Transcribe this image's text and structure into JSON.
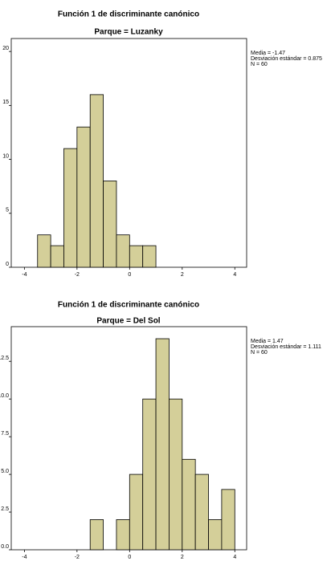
{
  "chart_data": [
    {
      "type": "histogram",
      "title": "Función 1 de discriminante canónico",
      "subtitle": "Parque = Luzanky",
      "bins": [
        -3.5,
        -3,
        -2.5,
        -2,
        -1.5,
        -1,
        -0.5,
        0,
        0.5,
        1
      ],
      "values": [
        3,
        2,
        11,
        13,
        16,
        8,
        3,
        2,
        2
      ],
      "color": "#d4cf99",
      "xlim": [
        -4.5,
        4.45
      ],
      "xticks": [
        -4,
        -2,
        0,
        2,
        4
      ],
      "ylim": [
        0,
        21.2
      ],
      "yticks": [
        0,
        5,
        10,
        15,
        20
      ],
      "annotations": [
        "Media = -1.47",
        "Desviación estándar = 0.875",
        "N = 60"
      ]
    },
    {
      "type": "histogram",
      "title": "Función 1 de discriminante canónico",
      "subtitle": "Parque = Del Sol",
      "bins": [
        -1.5,
        -1,
        -0.5,
        0,
        0.5,
        1,
        1.5,
        2,
        2.5,
        3,
        3.5,
        4
      ],
      "values": [
        2,
        0,
        2,
        5,
        10,
        14,
        10,
        6,
        5,
        2,
        4
      ],
      "color": "#d4cf99",
      "xlim": [
        -4.5,
        4.45
      ],
      "xticks": [
        -4,
        -2,
        0,
        2,
        4
      ],
      "ylim": [
        0,
        14.8
      ],
      "yticks": [
        {
          "value": 0,
          "label": "0.0"
        },
        {
          "value": 2.5,
          "label": "2.5"
        },
        {
          "value": 5,
          "label": "5.0"
        },
        {
          "value": 7.5,
          "label": "7.5"
        },
        {
          "value": 10,
          "label": "10.0"
        },
        {
          "value": 12.5,
          "label": "12.5"
        }
      ],
      "annotations": [
        "Media = 1.47",
        "Desviación estándar = 1.111",
        "N = 60"
      ]
    }
  ]
}
